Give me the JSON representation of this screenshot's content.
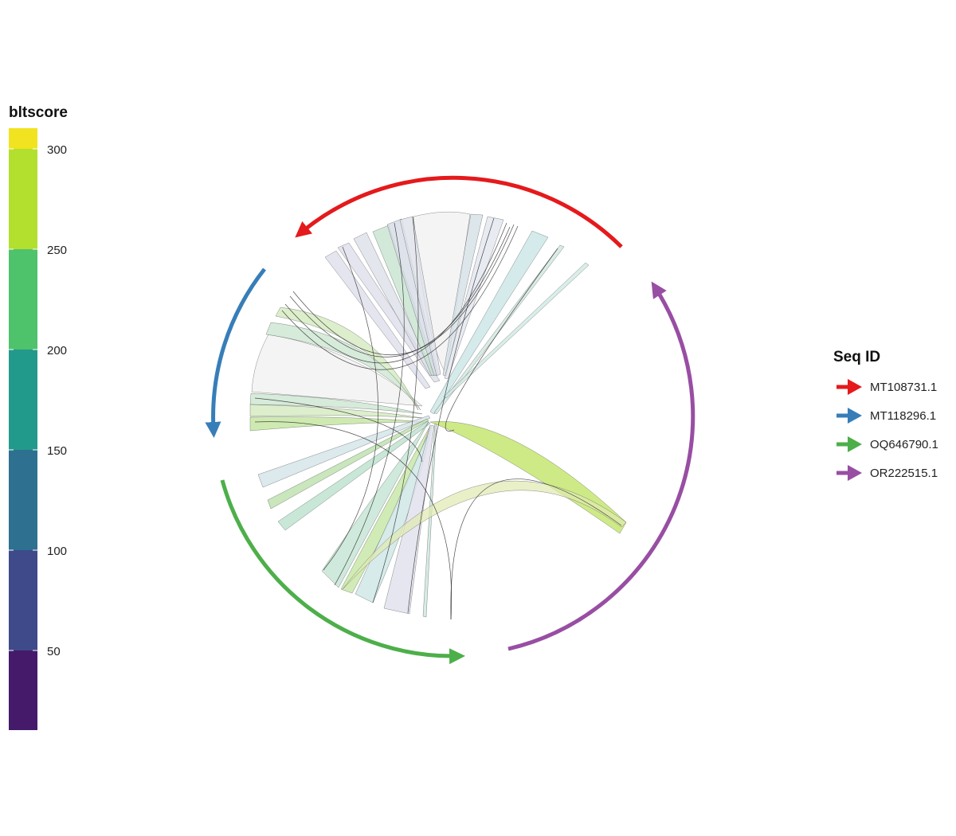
{
  "colorbar": {
    "title": "bltscore",
    "ticks": [
      "50",
      "100",
      "150",
      "200",
      "250",
      "300"
    ],
    "bins": [
      "#451a6a",
      "#3e4a89",
      "#2d7090",
      "#229a8b",
      "#4fc26c",
      "#b3df2e",
      "#f1e31f"
    ]
  },
  "legend": {
    "title": "Seq ID",
    "items": [
      {
        "label": "MT108731.1",
        "color": "#e41a1c"
      },
      {
        "label": "MT118296.1",
        "color": "#377eb8"
      },
      {
        "label": "OQ646790.1",
        "color": "#4daf4a"
      },
      {
        "label": "OR222515.1",
        "color": "#984ea3"
      }
    ]
  }
}
